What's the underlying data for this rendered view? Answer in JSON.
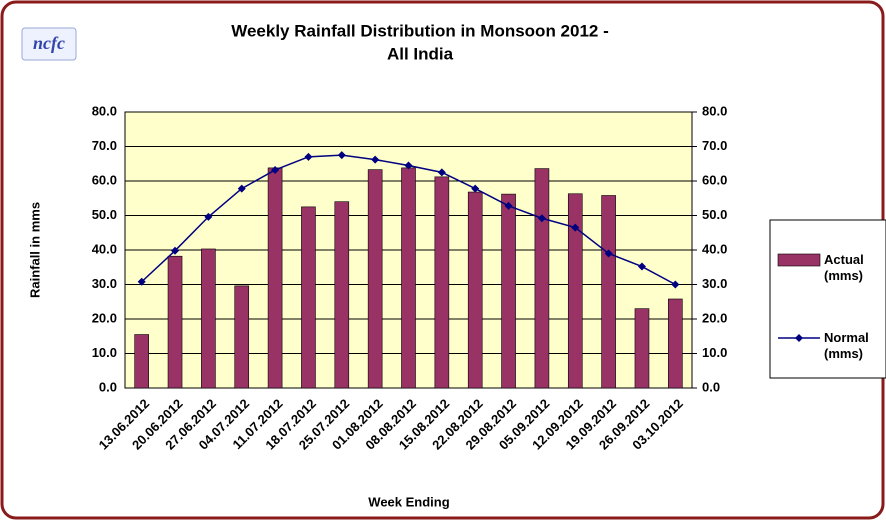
{
  "logo": "ncfc",
  "chart_data": {
    "type": "bar_line",
    "title": [
      "Weekly Rainfall Distribution in Monsoon 2012 -",
      "All India"
    ],
    "ylabel": "Rainfall in mms",
    "xlabel": "Week Ending",
    "categories": [
      "13.06.2012",
      "20.06.2012",
      "27.06.2012",
      "04.07.2012",
      "11.07.2012",
      "18.07.2012",
      "25.07.2012",
      "01.08.2012",
      "08.08.2012",
      "15.08.2012",
      "22.08.2012",
      "29.08.2012",
      "05.09.2012",
      "12.09.2012",
      "19.09.2012",
      "26.09.2012",
      "03.10.2012"
    ],
    "series": [
      {
        "name": "Actual (mms)",
        "type": "bar",
        "color": "#993366",
        "values": [
          15.5,
          38.2,
          40.3,
          29.6,
          63.8,
          52.5,
          54.0,
          63.3,
          63.8,
          61.2,
          56.8,
          56.2,
          63.6,
          56.3,
          55.8,
          23.0,
          25.8
        ]
      },
      {
        "name": "Normal (mms)",
        "type": "line",
        "color": "#000080",
        "values": [
          30.8,
          39.8,
          49.6,
          57.8,
          63.2,
          67.0,
          67.5,
          66.2,
          64.5,
          62.5,
          57.8,
          52.8,
          49.2,
          46.5,
          39.0,
          35.2,
          30.0
        ]
      }
    ],
    "ylim": [
      0,
      80
    ],
    "yticks": [
      {
        "value": 0,
        "label": "0.0"
      },
      {
        "value": 10,
        "label": "10.0"
      },
      {
        "value": 20,
        "label": "20.0"
      },
      {
        "value": 30,
        "label": "30.0"
      },
      {
        "value": 40,
        "label": "40.0"
      },
      {
        "value": 50,
        "label": "50.0"
      },
      {
        "value": 60,
        "label": "60.0"
      },
      {
        "value": 70,
        "label": "70.0"
      },
      {
        "value": 80,
        "label": "80.0"
      }
    ],
    "y2lim": [
      0,
      80
    ],
    "y2ticks": [
      {
        "value": 0,
        "label": "0.0"
      },
      {
        "value": 10,
        "label": "10.0"
      },
      {
        "value": 20,
        "label": "20.0"
      },
      {
        "value": 30,
        "label": "30.0"
      },
      {
        "value": 40,
        "label": "40.0"
      },
      {
        "value": 50,
        "label": "50.0"
      },
      {
        "value": 60,
        "label": "60.0"
      },
      {
        "value": 70,
        "label": "70.0"
      },
      {
        "value": 80,
        "label": "80.0"
      }
    ],
    "grid": true,
    "legend": "right"
  }
}
